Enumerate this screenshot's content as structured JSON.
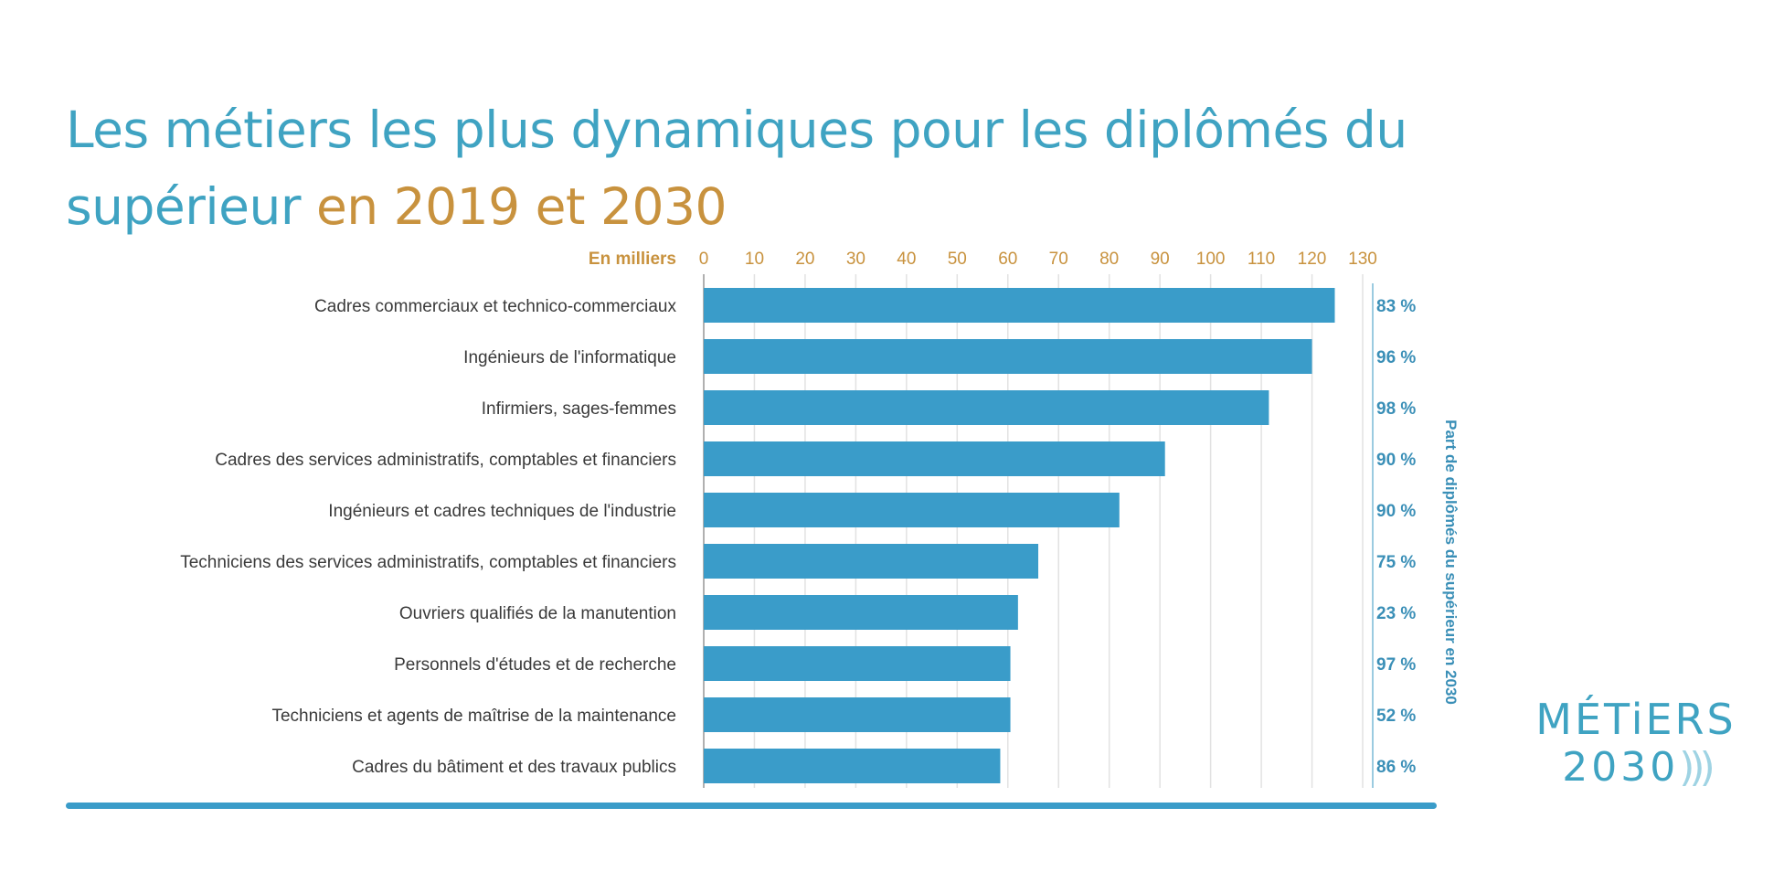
{
  "title": {
    "part1": "Les métiers les plus dynamiques pour les diplômés du supérieur ",
    "part2": "en 2019 et 2030"
  },
  "logo": {
    "line1": "MÉTiERS",
    "line2": "2030"
  },
  "chart_data": {
    "type": "bar",
    "orientation": "horizontal",
    "title": "Les métiers les plus dynamiques pour les diplômés du supérieur en 2019 et 2030",
    "xlabel": "En milliers",
    "ylabel": "",
    "xlim": [
      0,
      130
    ],
    "xticks": [
      0,
      10,
      20,
      30,
      40,
      50,
      60,
      70,
      80,
      90,
      100,
      110,
      120,
      130
    ],
    "grid": true,
    "categories": [
      "Cadres commerciaux et technico-commerciaux",
      "Ingénieurs de l'informatique",
      "Infirmiers, sages-femmes",
      "Cadres des services administratifs, comptables et financiers",
      "Ingénieurs et cadres techniques de l'industrie",
      "Techniciens des services administratifs, comptables et financiers",
      "Ouvriers qualifiés de la manutention",
      "Personnels d'études et de recherche",
      "Techniciens et agents de maîtrise de la maintenance",
      "Cadres du bâtiment et des travaux publics"
    ],
    "values": [
      124.5,
      120,
      111.5,
      91,
      82,
      66,
      62,
      60.5,
      60.5,
      58.5
    ],
    "secondary_label": "Part de diplômés du supérieur en 2030",
    "secondary_values": [
      "83 %",
      "96 %",
      "98 %",
      "90 %",
      "90 %",
      "75 %",
      "23 %",
      "97 %",
      "52 %",
      "86 %"
    ],
    "colors": {
      "bar": "#3a9cc9",
      "accent": "#c8923e",
      "text": "#3a3a3a",
      "pct": "#3a8fb7"
    }
  }
}
